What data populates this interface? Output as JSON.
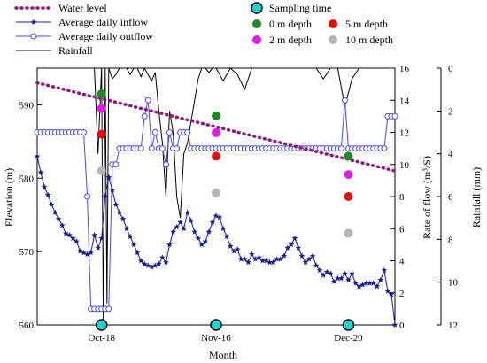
{
  "chart_data": {
    "type": "line",
    "xlabel": "Month",
    "x_ticks": [
      "Oct-18",
      "Nov-16",
      "Dec-20"
    ],
    "y_left": {
      "label": "Elevation (m)",
      "ticks": [
        560,
        570,
        580,
        590
      ],
      "lim": [
        560,
        595
      ]
    },
    "y_right1": {
      "label": "Rate of flow (m³/S)",
      "ticks": [
        0,
        2,
        4,
        6,
        8,
        10,
        12,
        14,
        16
      ],
      "lim": [
        0,
        16
      ]
    },
    "y_right2": {
      "label": "Rainfall (mm)",
      "ticks": [
        0,
        2,
        4,
        6,
        8,
        10,
        12
      ],
      "lim": [
        12,
        0
      ],
      "inverted": true
    },
    "legend": [
      {
        "key": "water_level",
        "label": "Water level"
      },
      {
        "key": "inflow",
        "label": "Average daily inflow"
      },
      {
        "key": "outflow",
        "label": "Average daily outflow"
      },
      {
        "key": "rainfall",
        "label": "Rainfall"
      },
      {
        "key": "sampling",
        "label": "Sampling time"
      },
      {
        "key": "d0",
        "label": "0 m depth"
      },
      {
        "key": "d5",
        "label": "5 m depth"
      },
      {
        "key": "d2",
        "label": "2 m depth"
      },
      {
        "key": "d10",
        "label": "10 m depth"
      }
    ],
    "colors": {
      "water_level": "#8b1a7b",
      "inflow": "#1c1c8a",
      "outflow": "#4a4ad0",
      "rainfall": "#000000",
      "sampling": "#22d3d3",
      "d0": "#1f8a1f",
      "d2": "#e21ae2",
      "d5": "#e01010",
      "d10": "#b5b5b5"
    },
    "day_range": [
      0,
      100
    ],
    "x_tick_days": [
      18,
      50,
      87
    ],
    "sampling_days": [
      18,
      50,
      87
    ],
    "water_level": {
      "days": [
        0,
        100
      ],
      "elevation": [
        593,
        581
      ]
    },
    "depth_points": [
      {
        "day": 18,
        "d0": 591.5,
        "d2": 589.5,
        "d5": 586,
        "d10": 581
      },
      {
        "day": 50,
        "d0": 588.5,
        "d2": 586.2,
        "d5": 583,
        "d10": 578
      },
      {
        "day": 87,
        "d0": 583,
        "d2": 580.5,
        "d5": 577.5,
        "d10": 572.5
      }
    ],
    "inflow": {
      "days": [
        0,
        1,
        2,
        3,
        4,
        5,
        6,
        7,
        8,
        9,
        10,
        11,
        12,
        13,
        14,
        15,
        16,
        17,
        18,
        19,
        20,
        21,
        22,
        23,
        24,
        25,
        26,
        27,
        28,
        29,
        30,
        31,
        32,
        33,
        34,
        35,
        36,
        37,
        38,
        39,
        40,
        41,
        42,
        43,
        44,
        45,
        46,
        47,
        48,
        49,
        50,
        51,
        52,
        53,
        54,
        55,
        56,
        57,
        58,
        59,
        60,
        61,
        62,
        63,
        64,
        65,
        66,
        67,
        68,
        69,
        70,
        71,
        72,
        73,
        74,
        75,
        76,
        77,
        78,
        79,
        80,
        81,
        82,
        83,
        84,
        85,
        86,
        87,
        88,
        89,
        90,
        91,
        92,
        93,
        94,
        95,
        96,
        97,
        98,
        99,
        100
      ],
      "flow": [
        10.5,
        9.5,
        8.6,
        8.1,
        7.5,
        7.0,
        6.6,
        6.2,
        5.7,
        5.6,
        5.4,
        5.2,
        4.6,
        4.5,
        4.4,
        4.5,
        5.6,
        4.8,
        5.4,
        8.0,
        9.2,
        8.4,
        7.5,
        7.0,
        6.6,
        6.0,
        5.5,
        5.0,
        4.5,
        4.0,
        3.8,
        3.7,
        3.6,
        3.7,
        3.8,
        4.2,
        3.9,
        5.0,
        5.8,
        6.1,
        6.4,
        6.0,
        7.0,
        6.5,
        5.8,
        5.4,
        5.0,
        5.2,
        5.8,
        6.4,
        6.8,
        6.7,
        6.0,
        5.5,
        4.9,
        4.6,
        4.7,
        4.1,
        4.1,
        3.9,
        4.4,
        4.1,
        4.2,
        4.0,
        4.0,
        3.9,
        3.9,
        4.1,
        4.1,
        4.3,
        4.8,
        5.0,
        5.4,
        4.8,
        4.3,
        3.9,
        4.1,
        4.3,
        3.7,
        3.4,
        3.1,
        3.3,
        3.2,
        2.7,
        2.9,
        2.9,
        3.2,
        2.8,
        3.2,
        2.6,
        2.4,
        2.5,
        2.6,
        2.6,
        2.6,
        2.4,
        2.8,
        3.4,
        2.1,
        1.9,
        0.0
      ]
    },
    "outflow": {
      "days": [
        0,
        1,
        2,
        3,
        4,
        5,
        6,
        7,
        8,
        9,
        10,
        11,
        12,
        13,
        14,
        15,
        16,
        17,
        18,
        19,
        20,
        21,
        22,
        23,
        24,
        25,
        26,
        27,
        28,
        29,
        30,
        31,
        32,
        33,
        34,
        35,
        36,
        37,
        38,
        39,
        40,
        41,
        42,
        43,
        44,
        45,
        46,
        47,
        48,
        49,
        50,
        51,
        52,
        53,
        54,
        55,
        56,
        57,
        58,
        59,
        60,
        61,
        62,
        63,
        64,
        65,
        66,
        67,
        68,
        69,
        70,
        71,
        72,
        73,
        74,
        75,
        76,
        77,
        78,
        79,
        80,
        81,
        82,
        83,
        84,
        85,
        86,
        87,
        88,
        89,
        90,
        91,
        92,
        93,
        94,
        95,
        96,
        97,
        98,
        99,
        100
      ],
      "flow": [
        12,
        12,
        12,
        12,
        12,
        12,
        12,
        12,
        12,
        12,
        12,
        12,
        12,
        12,
        8,
        1,
        1,
        1,
        1,
        1,
        1,
        10,
        10,
        11,
        11,
        11,
        11,
        11,
        11,
        11,
        13,
        14,
        11,
        12,
        11,
        11,
        10,
        12,
        11,
        11,
        12,
        12,
        12,
        11,
        11,
        11,
        11,
        11,
        11,
        11,
        11,
        11,
        11,
        11,
        11,
        11,
        11,
        11,
        11,
        11,
        11,
        11,
        11,
        11,
        11,
        11,
        11,
        11,
        11,
        11,
        11,
        11,
        11,
        11,
        11,
        11,
        11,
        11,
        11,
        11,
        11,
        11,
        11,
        11,
        11,
        11,
        14,
        11,
        11,
        11,
        11,
        11,
        11,
        11,
        11,
        11,
        11,
        11,
        13,
        13,
        13
      ]
    },
    "rainfall": {
      "days": [
        0,
        2,
        4,
        6,
        8,
        10,
        12,
        14,
        16,
        17,
        18,
        18.5,
        19,
        19.5,
        20,
        21,
        22,
        23,
        24,
        25,
        26,
        27,
        28,
        29,
        30,
        31,
        32,
        33,
        34,
        35,
        36,
        37,
        38,
        39,
        40,
        41,
        42,
        43,
        44,
        45,
        46,
        47,
        48,
        49,
        50,
        51,
        52,
        53,
        54,
        56,
        58,
        60,
        62,
        64,
        66,
        68,
        70,
        72,
        74,
        76,
        78,
        80,
        82,
        84,
        86,
        88,
        90,
        92,
        94,
        96,
        98,
        100
      ],
      "mm": [
        0,
        0,
        0,
        0,
        0,
        0,
        0,
        0,
        0,
        4,
        0,
        12,
        0,
        11,
        0,
        0.5,
        0.3,
        0,
        0,
        0,
        0.3,
        0,
        0,
        0.4,
        0,
        0.3,
        0.6,
        0.2,
        2,
        3.5,
        6,
        2,
        3,
        6,
        7,
        4,
        3.5,
        2.5,
        1.5,
        0.5,
        0,
        0,
        0.2,
        0,
        0,
        0.3,
        0.6,
        0.3,
        0,
        0.3,
        1,
        0,
        0,
        0,
        0,
        0,
        0,
        0,
        0,
        0,
        0,
        0.5,
        0,
        0,
        1.8,
        0.5,
        0,
        0,
        0,
        0,
        0,
        0
      ]
    }
  }
}
